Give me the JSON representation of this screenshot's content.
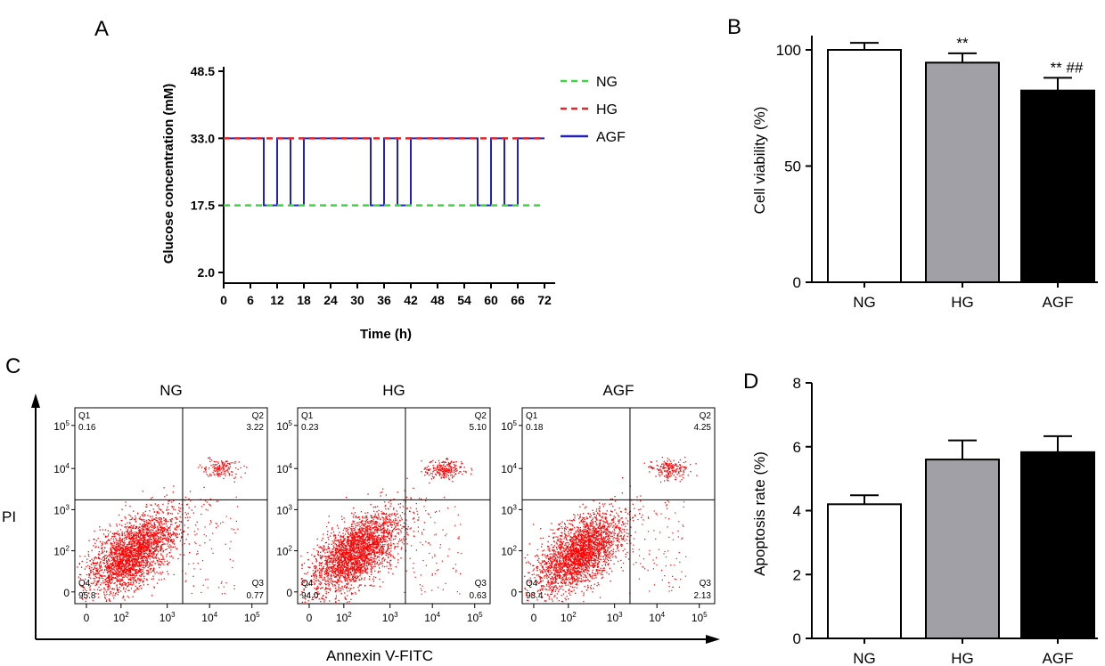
{
  "chart_data": [
    {
      "panel": "A",
      "type": "line",
      "xlabel": "Time (h)",
      "ylabel": "Glucose concentration (mM)",
      "xlim": [
        0,
        72
      ],
      "ylim": [
        2.0,
        48.5
      ],
      "x_ticks": [
        0,
        6,
        12,
        18,
        24,
        30,
        36,
        42,
        48,
        54,
        60,
        66,
        72
      ],
      "y_ticks": [
        "2.0",
        "17.5",
        "33.0",
        "48.5"
      ],
      "legend_position": "top-right",
      "series": [
        {
          "name": "NG",
          "style": "dashed",
          "color": "#33dd33",
          "x": [
            0,
            72
          ],
          "y": [
            17.5,
            17.5
          ]
        },
        {
          "name": "HG",
          "style": "dashed",
          "color": "#ee2222",
          "x": [
            0,
            72
          ],
          "y": [
            33.0,
            33.0
          ]
        },
        {
          "name": "AGF",
          "style": "solid",
          "color": "#2222bb",
          "x": [
            0,
            9,
            9,
            12,
            12,
            15,
            15,
            18,
            18,
            33,
            33,
            36,
            36,
            39,
            39,
            42,
            42,
            57,
            57,
            60,
            60,
            63,
            63,
            66,
            66,
            72
          ],
          "y": [
            33,
            33,
            17.5,
            17.5,
            33,
            33,
            17.5,
            17.5,
            33,
            33,
            17.5,
            17.5,
            33,
            33,
            17.5,
            17.5,
            33,
            33,
            17.5,
            17.5,
            33,
            33,
            17.5,
            17.5,
            33,
            33
          ]
        }
      ]
    },
    {
      "panel": "B",
      "type": "bar",
      "ylabel": "Cell viability (%)",
      "ylim": [
        0,
        100
      ],
      "y_ticks": [
        "0",
        "50",
        "100"
      ],
      "categories": [
        "NG",
        "HG",
        "AGF"
      ],
      "values": [
        100,
        94.5,
        82.5
      ],
      "errors": [
        3,
        4,
        5.5
      ],
      "bar_colors": [
        "#ffffff",
        "#a0a0a6",
        "#000000"
      ],
      "annotations": [
        "",
        "**",
        "** ##"
      ]
    },
    {
      "panel": "C",
      "type": "scatter",
      "xlabel": "Annexin V-FITC",
      "ylabel": "PI",
      "x_ticks": [
        "0",
        "10",
        "10",
        "10",
        "10"
      ],
      "x_tick_exponents": [
        "",
        "2",
        "3",
        "4",
        "5"
      ],
      "y_ticks": [
        "0",
        "10",
        "10",
        "10",
        "10"
      ],
      "y_tick_exponents": [
        "",
        "2",
        "3",
        "4",
        "5"
      ],
      "quadrant_labels": [
        "Q1",
        "Q2",
        "Q3",
        "Q4"
      ],
      "plots": [
        {
          "title": "NG",
          "q1": "0.16",
          "q2": "3.22",
          "q3": "0.77",
          "q4": "95.8"
        },
        {
          "title": "HG",
          "q1": "0.23",
          "q2": "5.10",
          "q3": "0.63",
          "q4": "94.0"
        },
        {
          "title": "AGF",
          "q1": "0.18",
          "q2": "4.25",
          "q3": "2.13",
          "q4": "93.4"
        }
      ],
      "dot_color": "#ff0000"
    },
    {
      "panel": "D",
      "type": "bar",
      "ylabel": "Apoptosis rate (%)",
      "ylim": [
        0,
        8
      ],
      "y_ticks": [
        "0",
        "2",
        "4",
        "6",
        "8"
      ],
      "categories": [
        "NG",
        "HG",
        "AGF"
      ],
      "values": [
        4.2,
        5.6,
        5.83
      ],
      "errors": [
        0.28,
        0.6,
        0.5
      ],
      "bar_colors": [
        "#ffffff",
        "#a0a0a6",
        "#000000"
      ]
    }
  ]
}
